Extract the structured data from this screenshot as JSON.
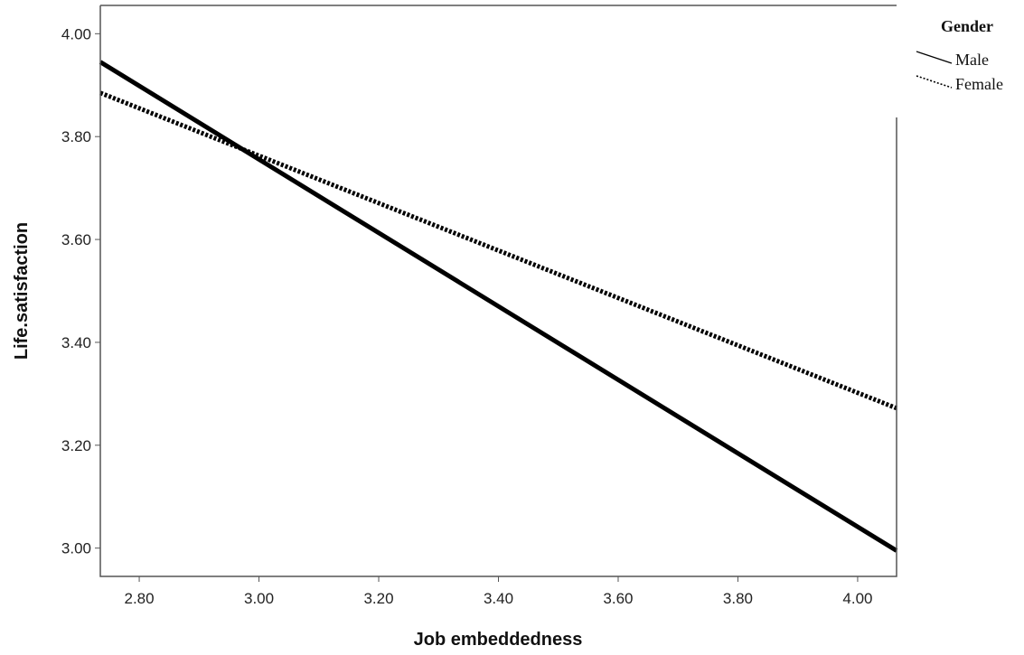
{
  "chart_data": {
    "type": "line",
    "title": "",
    "xlabel": "Job embeddedness",
    "ylabel": "Life.satisfaction",
    "xlim": [
      2.735,
      4.065
    ],
    "ylim": [
      2.945,
      4.055
    ],
    "x_ticks": [
      2.8,
      3.0,
      3.2,
      3.4,
      3.6,
      3.8,
      4.0
    ],
    "x_tick_labels": [
      "2.80",
      "3.00",
      "3.20",
      "3.40",
      "3.60",
      "3.80",
      "4.00"
    ],
    "y_ticks": [
      3.0,
      3.2,
      3.4,
      3.6,
      3.8,
      4.0
    ],
    "y_tick_labels": [
      "3.00",
      "3.20",
      "3.40",
      "3.60",
      "3.80",
      "4.00"
    ],
    "grid": false,
    "legend": {
      "title": "Gender",
      "placement": "top-right, outside plot"
    },
    "series": [
      {
        "name": "Male",
        "style": "solid",
        "color": "#000000",
        "x": [
          2.735,
          4.065
        ],
        "y": [
          3.945,
          2.995
        ]
      },
      {
        "name": "Female",
        "style": "dotted",
        "color": "#000000",
        "x": [
          2.735,
          4.065
        ],
        "y": [
          3.885,
          3.272
        ]
      }
    ]
  }
}
